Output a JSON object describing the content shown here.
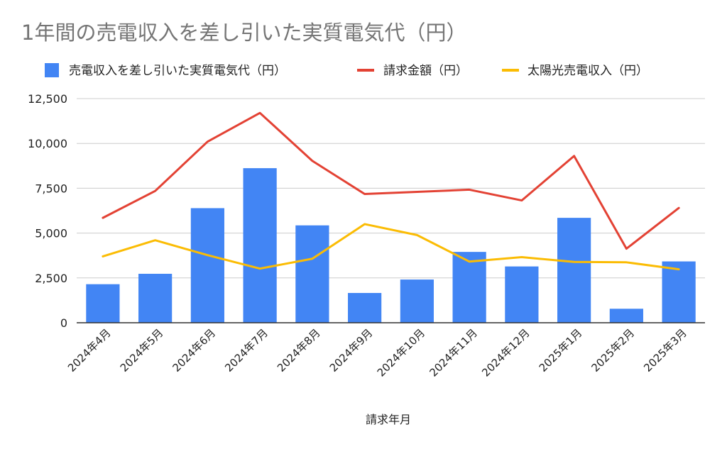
{
  "chart_data": {
    "type": "bar+line",
    "title": "1年間の売電収入を差し引いた実質電気代（円）",
    "xlabel": "請求年月",
    "ylabel": "",
    "categories": [
      "2024年4月",
      "2024年5月",
      "2024年6月",
      "2024年7月",
      "2024年8月",
      "2024年9月",
      "2024年10月",
      "2024年11月",
      "2024年12月",
      "2025年1月",
      "2025年2月",
      "2025年3月"
    ],
    "series": [
      {
        "name": "売電収入を差し引いた実質電気代（円）",
        "type": "bar",
        "color": "#4285f4",
        "values": [
          2150,
          2730,
          6390,
          8620,
          5430,
          1660,
          2410,
          3950,
          3140,
          5850,
          780,
          3420
        ]
      },
      {
        "name": "請求金額（円）",
        "type": "line",
        "color": "#e34234",
        "values": [
          5850,
          7350,
          10100,
          11700,
          9030,
          7180,
          7300,
          7420,
          6820,
          9300,
          4130,
          6400
        ]
      },
      {
        "name": "太陽光売電収入（円）",
        "type": "line",
        "color": "#fbbc04",
        "values": [
          3700,
          4600,
          3770,
          3020,
          3570,
          5500,
          4890,
          3410,
          3660,
          3390,
          3370,
          2980
        ]
      }
    ],
    "ylim": [
      0,
      12500
    ],
    "yticks": [
      0,
      2500,
      5000,
      7500,
      10000,
      12500
    ],
    "ytick_labels": [
      "0",
      "2,500",
      "5,000",
      "7,500",
      "10,000",
      "12,500"
    ],
    "grid": true,
    "legend_position": "top"
  }
}
